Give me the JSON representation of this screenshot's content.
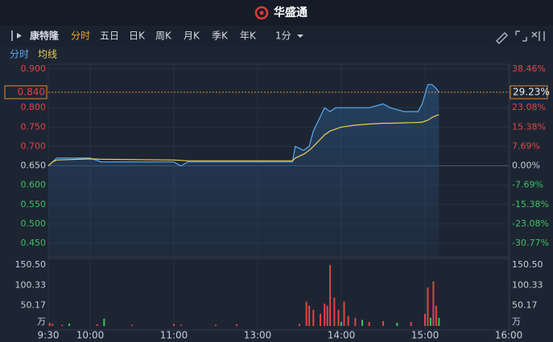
{
  "header": {
    "brand": "华盛通"
  },
  "toolbar": {
    "stock_name": "康特隆",
    "tabs": [
      "分时",
      "五日",
      "日K",
      "周K",
      "月K",
      "季K",
      "年K"
    ],
    "active_tab": 0,
    "interval": "1分"
  },
  "chart_data": {
    "type": "line",
    "x": [
      "9:30",
      "9:33",
      "9:36",
      "10:00",
      "10:08",
      "11:00",
      "11:05",
      "11:10",
      "11:30",
      "12:00",
      "13:00",
      "13:25",
      "13:27",
      "13:33",
      "13:37",
      "13:40",
      "13:44",
      "13:48",
      "13:52",
      "13:56",
      "14:00",
      "14:10",
      "14:20",
      "14:30",
      "14:35",
      "14:45",
      "14:55",
      "14:58",
      "15:02",
      "15:05",
      "15:08",
      "15:10"
    ],
    "series": [
      {
        "name": "分时",
        "color": "#5aaaf2",
        "values": [
          0.65,
          0.66,
          0.67,
          0.67,
          0.66,
          0.66,
          0.65,
          0.66,
          0.66,
          0.66,
          0.66,
          0.66,
          0.7,
          0.69,
          0.7,
          0.74,
          0.77,
          0.8,
          0.79,
          0.8,
          0.8,
          0.8,
          0.8,
          0.81,
          0.8,
          0.79,
          0.79,
          0.81,
          0.86,
          0.86,
          0.85,
          0.84
        ]
      },
      {
        "name": "均线",
        "color": "#eccb5a",
        "values": [
          0.65,
          0.66,
          0.665,
          0.668,
          0.667,
          0.665,
          0.664,
          0.663,
          0.663,
          0.663,
          0.663,
          0.663,
          0.67,
          0.68,
          0.69,
          0.7,
          0.715,
          0.73,
          0.74,
          0.745,
          0.75,
          0.755,
          0.758,
          0.76,
          0.76,
          0.761,
          0.762,
          0.763,
          0.768,
          0.775,
          0.78,
          0.782
        ]
      }
    ],
    "ylim": [
      0.45,
      0.9
    ],
    "yticks": [
      {
        "value": 0.9,
        "label": "0.900"
      },
      {
        "value": 0.8,
        "label": "0.800"
      },
      {
        "value": 0.75,
        "label": "0.750"
      },
      {
        "value": 0.7,
        "label": "0.700"
      },
      {
        "value": 0.65,
        "label": "0.650"
      },
      {
        "value": 0.6,
        "label": "0.600"
      },
      {
        "value": 0.55,
        "label": "0.550"
      },
      {
        "value": 0.5,
        "label": "0.500"
      },
      {
        "value": 0.45,
        "label": "0.450"
      }
    ],
    "y2lim": [
      -30.77,
      38.46
    ],
    "y2ticks": [
      {
        "value": 38.46,
        "label": "38.46%"
      },
      {
        "value": 23.08,
        "label": "23.08%"
      },
      {
        "value": 15.38,
        "label": "15.38%"
      },
      {
        "value": 7.69,
        "label": "7.69%"
      },
      {
        "value": 0,
        "label": "0.00%"
      },
      {
        "value": -7.69,
        "label": "-7.69%"
      },
      {
        "value": -15.38,
        "label": "-15.38%"
      },
      {
        "value": -23.08,
        "label": "-23.08%"
      },
      {
        "value": -30.77,
        "label": "-30.77%"
      }
    ],
    "xticks": [
      "9:30",
      "10:00",
      "11:00",
      "13:00",
      "14:00",
      "15:00",
      "16:00"
    ],
    "last_price": {
      "value": 0.84,
      "label": "0.840"
    },
    "last_change": {
      "value": 29.23,
      "label": "29.23%"
    },
    "volume": {
      "x": [
        "9:31",
        "9:33",
        "9:40",
        "9:45",
        "10:05",
        "10:10",
        "10:30",
        "11:00",
        "11:05",
        "11:30",
        "11:45",
        "13:30",
        "13:35",
        "13:37",
        "13:40",
        "13:45",
        "13:48",
        "13:50",
        "13:52",
        "13:55",
        "13:58",
        "14:00",
        "14:02",
        "14:05",
        "14:10",
        "14:15",
        "14:20",
        "14:30",
        "14:40",
        "14:50",
        "15:00",
        "15:02",
        "15:04",
        "15:06",
        "15:08",
        "15:10"
      ],
      "values": [
        8,
        5,
        3,
        6,
        4,
        18,
        3,
        5,
        3,
        3,
        4,
        5,
        60,
        50,
        40,
        30,
        55,
        50,
        150,
        70,
        40,
        10,
        60,
        25,
        20,
        15,
        10,
        12,
        8,
        10,
        30,
        95,
        20,
        110,
        50,
        20
      ],
      "colors": [
        "#e04545",
        "#e04545",
        "#e04545",
        "#3cc060",
        "#e04545",
        "#3cc060",
        "#e04545",
        "#e04545",
        "#e04545",
        "#e04545",
        "#e04545",
        "#e04545",
        "#e04545",
        "#e04545",
        "#e04545",
        "#e04545",
        "#e04545",
        "#e04545",
        "#e04545",
        "#e04545",
        "#e04545",
        "#3cc060",
        "#e04545",
        "#e04545",
        "#e04545",
        "#3cc060",
        "#e04545",
        "#e04545",
        "#3cc060",
        "#e04545",
        "#e04545",
        "#e04545",
        "#3cc060",
        "#e04545",
        "#e04545",
        "#3cc060"
      ],
      "ylim": [
        0,
        150.5
      ],
      "yticks": [
        {
          "value": 150.5,
          "label": "150.50"
        },
        {
          "value": 100.33,
          "label": "100.33"
        },
        {
          "value": 50.17,
          "label": "50.17"
        }
      ],
      "unit": "万"
    }
  }
}
